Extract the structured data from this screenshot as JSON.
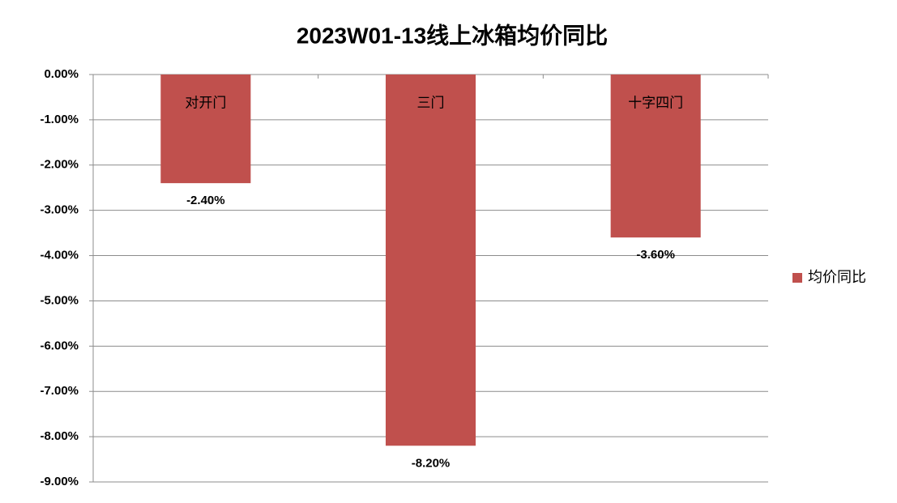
{
  "chart_data": {
    "type": "bar",
    "title": "2023W01-13线上冰箱均价同比",
    "categories": [
      "对开门",
      "三门",
      "十字四门"
    ],
    "series": [
      {
        "name": "均价同比",
        "color": "#c0504d",
        "values": [
          -2.4,
          -8.2,
          -3.6
        ],
        "value_labels": [
          "-2.40%",
          "-8.20%",
          "-3.60%"
        ]
      }
    ],
    "ylim": [
      -9,
      0
    ],
    "yticks": [
      {
        "value": 0,
        "label": "0.00%"
      },
      {
        "value": -1,
        "label": "-1.00%"
      },
      {
        "value": -2,
        "label": "-2.00%"
      },
      {
        "value": -3,
        "label": "-3.00%"
      },
      {
        "value": -4,
        "label": "-4.00%"
      },
      {
        "value": -5,
        "label": "-5.00%"
      },
      {
        "value": -6,
        "label": "-6.00%"
      },
      {
        "value": -7,
        "label": "-7.00%"
      },
      {
        "value": -8,
        "label": "-8.00%"
      },
      {
        "value": -9,
        "label": "-9.00%"
      }
    ],
    "grid": true,
    "legend": "right"
  }
}
